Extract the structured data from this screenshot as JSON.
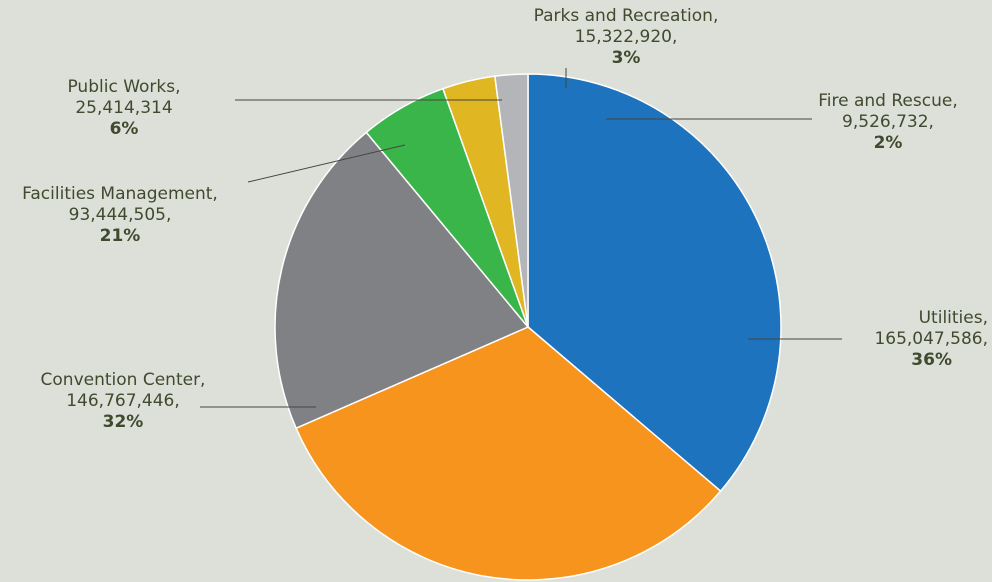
{
  "chart_data": {
    "type": "pie",
    "title": "",
    "start_angle_deg": -90,
    "direction": "clockwise",
    "slices": [
      {
        "key": "utilities",
        "name": "Utilities",
        "value": 165047586,
        "value_text": "165,047,586,",
        "percent": "36%",
        "color": "#1e73be"
      },
      {
        "key": "convention",
        "name": "Convention Center",
        "value": 146767446,
        "value_text": "146,767,446,",
        "percent": "32%",
        "color": "#f7941d"
      },
      {
        "key": "facilities",
        "name": "Facilities Management",
        "value": 93444505,
        "value_text": "93,444,505,",
        "percent": "21%",
        "color": "#808184"
      },
      {
        "key": "publicworks",
        "name": "Public Works",
        "value": 25414314,
        "value_text": "25,414,314",
        "percent": "6%",
        "color": "#39b54a"
      },
      {
        "key": "parks",
        "name": "Parks and Recreation",
        "value": 15322920,
        "value_text": "15,322,920,",
        "percent": "3%",
        "color": "#e0b622"
      },
      {
        "key": "fire",
        "name": "Fire and Rescue",
        "value": 9526732,
        "value_text": "9,526,732,",
        "percent": "2%",
        "color": "#b3b5b8"
      }
    ]
  },
  "labels": {
    "utilities": {
      "name": "Utilities,"
    },
    "convention": {
      "name": "Convention Center,"
    },
    "facilities": {
      "name": "Facilities Management,"
    },
    "publicworks": {
      "name": "Public Works,"
    },
    "parks": {
      "name": "Parks and Recreation,"
    },
    "fire": {
      "name": "Fire and Rescue,"
    }
  }
}
